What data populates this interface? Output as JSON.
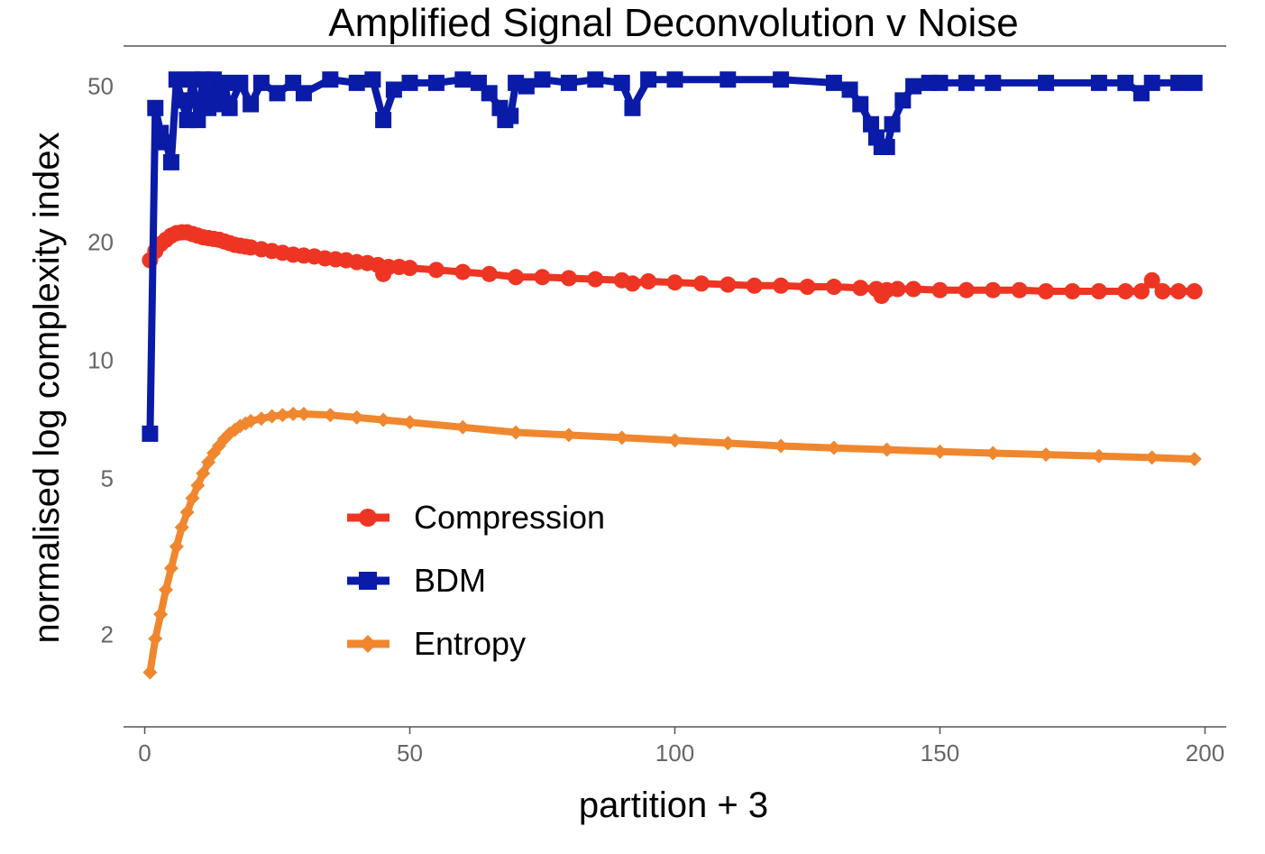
{
  "chart_data": {
    "type": "line",
    "title": "Amplified Signal Deconvolution v Noise",
    "xlabel": "partition + 3",
    "ylabel": "normalised log complexity index",
    "xlim": [
      -4,
      204
    ],
    "ylim": [
      1.2,
      62
    ],
    "yscale": "log",
    "xticks": [
      0,
      50,
      100,
      150,
      200
    ],
    "yticks": [
      2,
      5,
      10,
      20,
      50
    ],
    "legend_position": "center-left",
    "series": [
      {
        "name": "Compression",
        "color": "#EE3523",
        "marker": "circle",
        "x": [
          1,
          2,
          3,
          4,
          5,
          6,
          7,
          8,
          9,
          10,
          11,
          12,
          13,
          14,
          15,
          16,
          17,
          18,
          19,
          20,
          22,
          24,
          26,
          28,
          30,
          32,
          34,
          36,
          38,
          40,
          42,
          44,
          45,
          46,
          48,
          50,
          55,
          60,
          65,
          70,
          75,
          80,
          85,
          90,
          92,
          95,
          100,
          105,
          110,
          115,
          120,
          125,
          130,
          135,
          138,
          139,
          140,
          142,
          145,
          150,
          155,
          160,
          165,
          170,
          175,
          180,
          185,
          188,
          190,
          192,
          195,
          198
        ],
        "y": [
          18,
          19,
          19.8,
          20.3,
          20.8,
          21.1,
          21.2,
          21.2,
          21.0,
          20.8,
          20.6,
          20.5,
          20.4,
          20.3,
          20.1,
          19.9,
          19.7,
          19.6,
          19.5,
          19.4,
          19.2,
          19.0,
          18.8,
          18.6,
          18.5,
          18.4,
          18.2,
          18.1,
          18.0,
          17.8,
          17.7,
          17.5,
          16.6,
          17.3,
          17.3,
          17.2,
          17.0,
          16.8,
          16.6,
          16.3,
          16.3,
          16.2,
          16.1,
          16.0,
          15.7,
          15.9,
          15.8,
          15.7,
          15.6,
          15.5,
          15.5,
          15.4,
          15.4,
          15.3,
          15.2,
          14.6,
          15.1,
          15.2,
          15.2,
          15.1,
          15.1,
          15.1,
          15.1,
          15.0,
          15.0,
          15.0,
          15.0,
          15.0,
          16.0,
          15.0,
          15.0,
          15.0
        ]
      },
      {
        "name": "BDM",
        "color": "#0A1BA8",
        "marker": "square",
        "x": [
          1,
          2,
          3,
          4,
          5,
          6,
          7,
          8,
          9,
          10,
          11,
          12,
          13,
          14,
          15,
          16,
          18,
          20,
          22,
          25,
          28,
          30,
          35,
          40,
          43,
          45,
          47,
          50,
          55,
          60,
          63,
          65,
          67,
          68,
          69,
          70,
          72,
          75,
          80,
          85,
          90,
          92,
          95,
          100,
          110,
          120,
          130,
          133,
          135,
          137,
          138,
          139,
          140,
          141,
          143,
          145,
          148,
          150,
          155,
          160,
          170,
          180,
          185,
          188,
          190,
          195,
          198
        ],
        "y": [
          6.5,
          44,
          38,
          36,
          32,
          52,
          46,
          41,
          52,
          41,
          52,
          44,
          52,
          45,
          51,
          44,
          51,
          45,
          51,
          48,
          51,
          48,
          52,
          51,
          52,
          41,
          49,
          51,
          51,
          52,
          51,
          48,
          44,
          41,
          42,
          51,
          50,
          52,
          51,
          52,
          51,
          44,
          52,
          52,
          52,
          52,
          51,
          49,
          45,
          40,
          37,
          35,
          35,
          40,
          46,
          50,
          51,
          51,
          51,
          51,
          51,
          51,
          51,
          48,
          51,
          51,
          51
        ]
      },
      {
        "name": "Entropy",
        "color": "#F0872E",
        "marker": "diamond",
        "x": [
          1,
          2,
          3,
          4,
          5,
          6,
          7,
          8,
          9,
          10,
          11,
          12,
          13,
          14,
          15,
          16,
          17,
          18,
          19,
          20,
          22,
          24,
          26,
          28,
          30,
          35,
          40,
          45,
          50,
          60,
          70,
          80,
          90,
          100,
          110,
          120,
          130,
          140,
          150,
          160,
          170,
          180,
          190,
          198
        ],
        "y": [
          1.6,
          1.95,
          2.25,
          2.6,
          2.95,
          3.35,
          3.75,
          4.1,
          4.45,
          4.8,
          5.15,
          5.5,
          5.8,
          6.05,
          6.3,
          6.5,
          6.65,
          6.8,
          6.9,
          7.0,
          7.1,
          7.2,
          7.25,
          7.3,
          7.3,
          7.25,
          7.15,
          7.05,
          6.95,
          6.75,
          6.55,
          6.45,
          6.35,
          6.25,
          6.15,
          6.05,
          5.98,
          5.92,
          5.85,
          5.8,
          5.75,
          5.7,
          5.65,
          5.6
        ]
      }
    ]
  }
}
